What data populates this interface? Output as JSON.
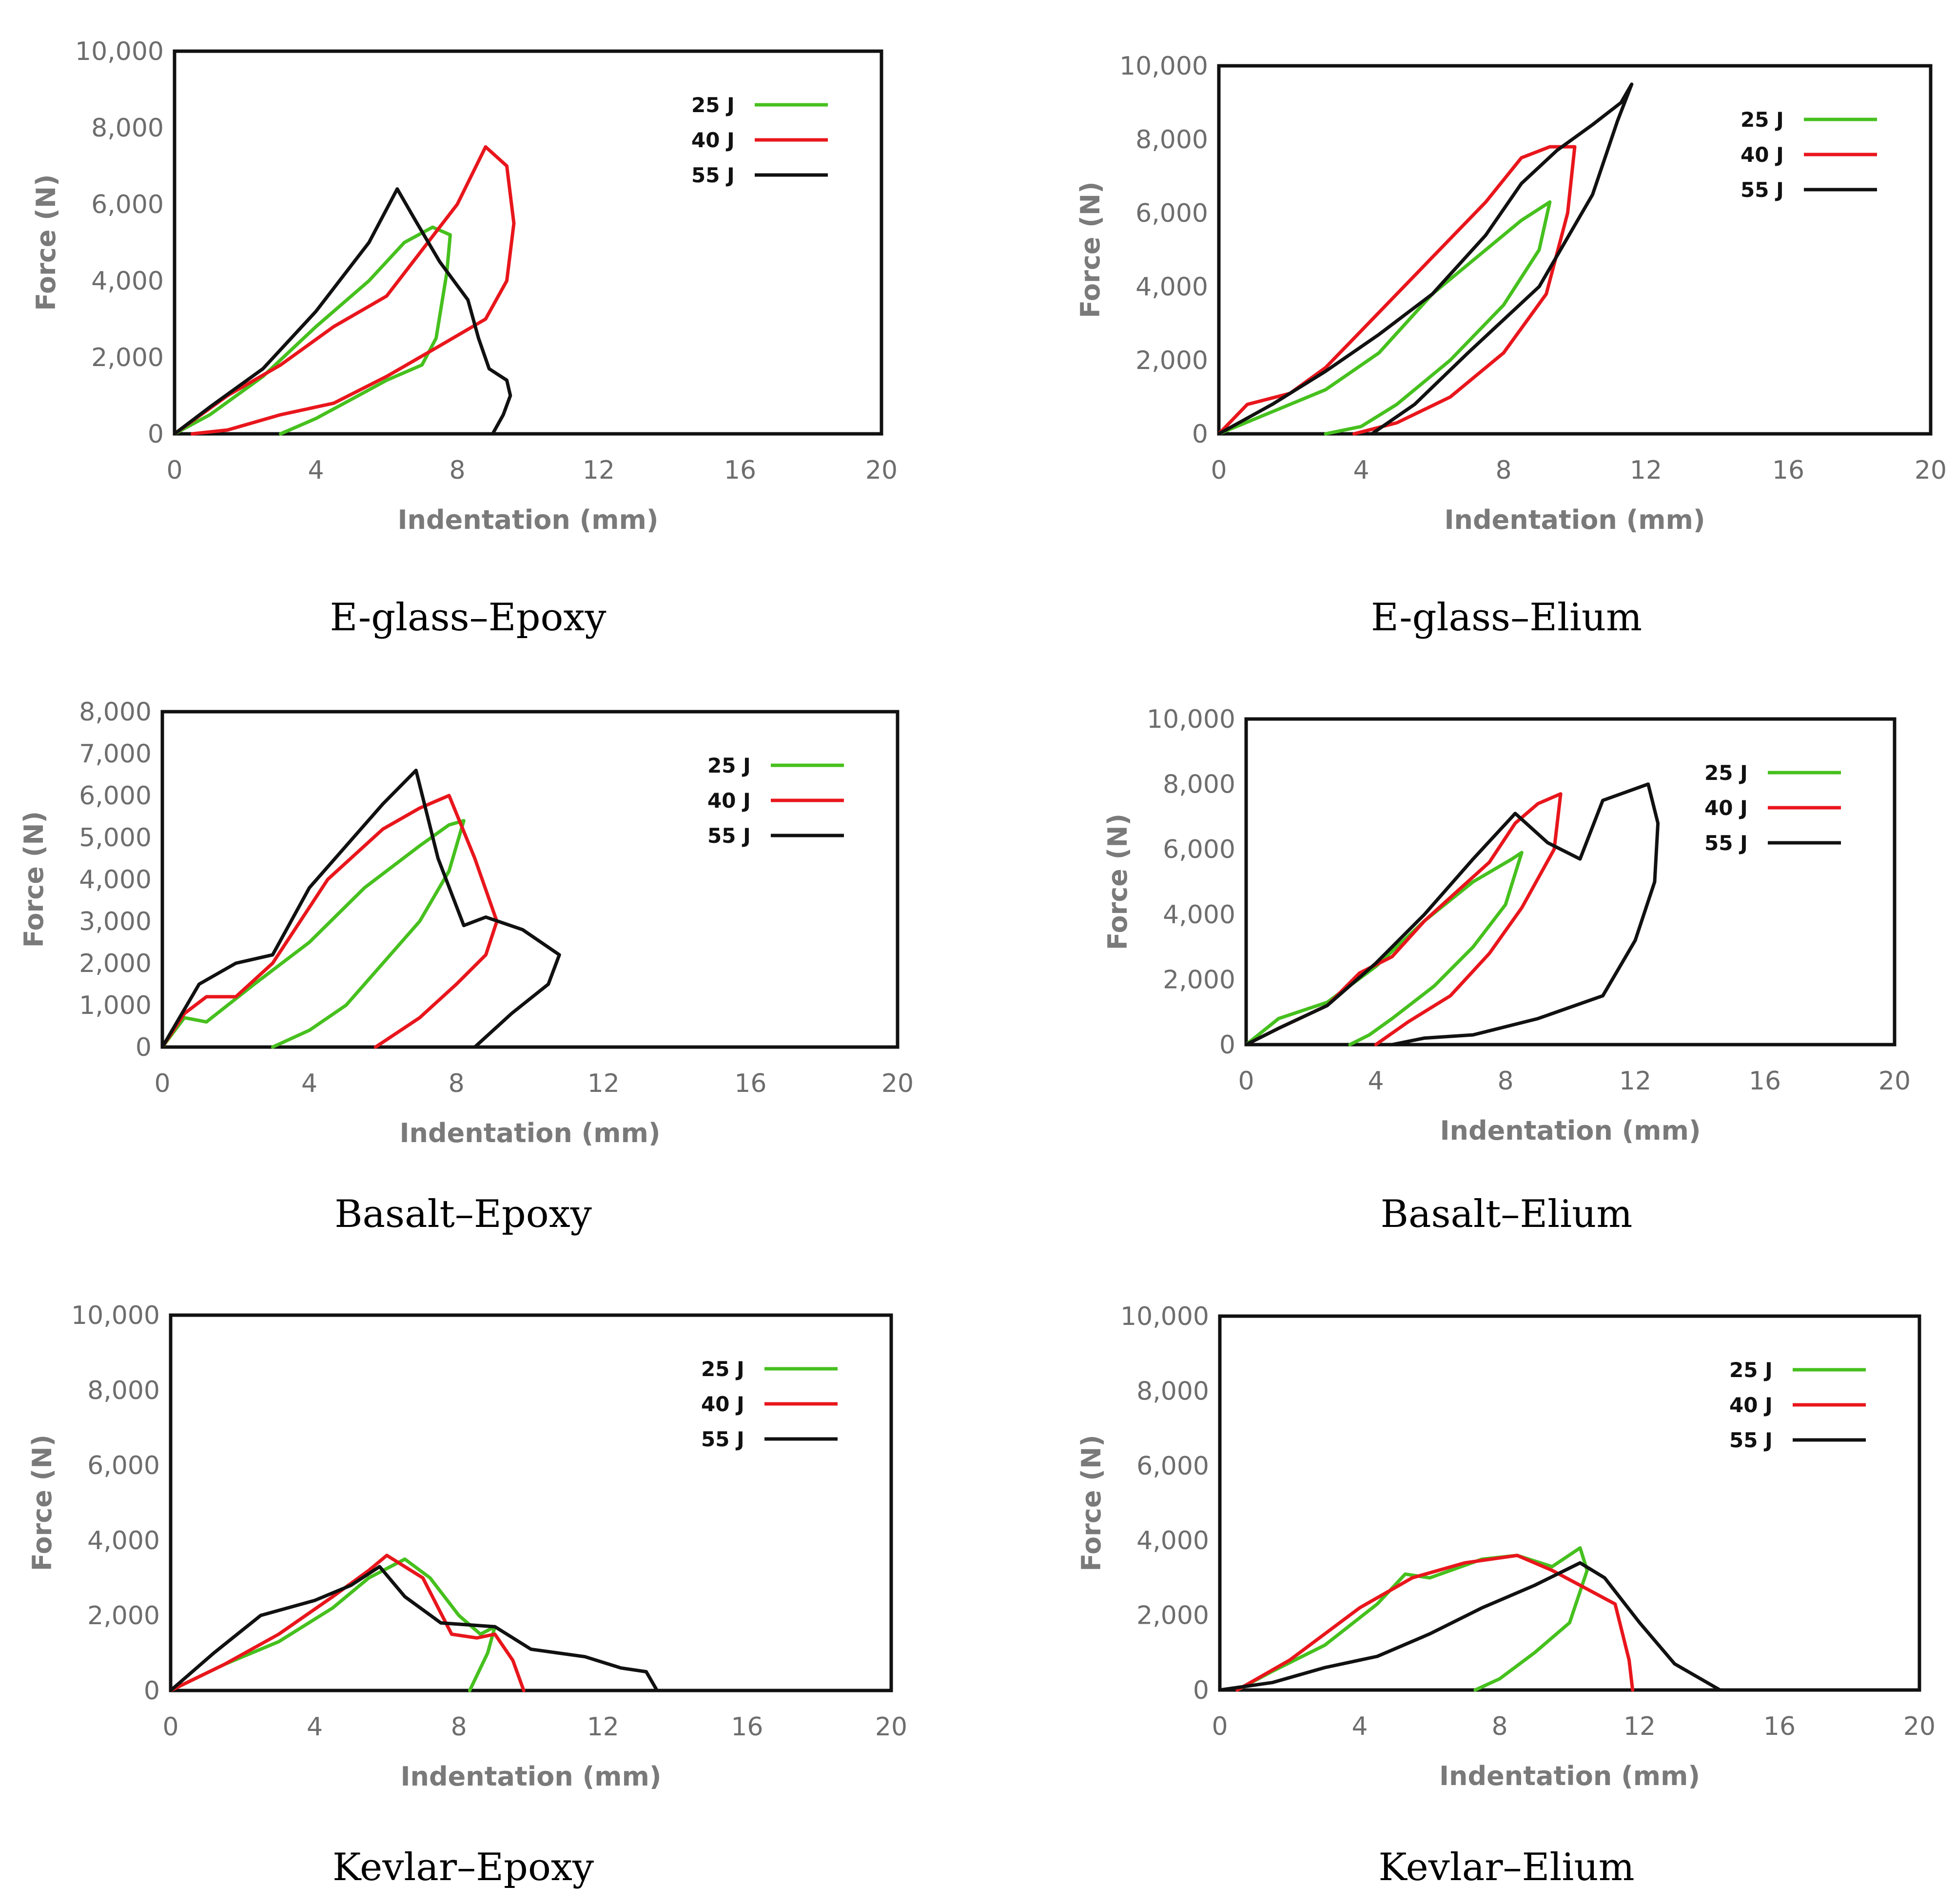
{
  "figure": {
    "captions": [
      "E-glass–Epoxy",
      "E-glass–Elium",
      "Basalt–Epoxy",
      "Basalt–Elium",
      "Kevlar–Epoxy",
      "Kevlar–Elium"
    ]
  },
  "colors": {
    "25 J": "#46c01e",
    "40 J": "#e8161c",
    "55 J": "#111111"
  },
  "chart_data": [
    {
      "type": "line",
      "title": "E-glass–Epoxy",
      "xlabel": "Indentation (mm)",
      "ylabel": "Force (N)",
      "xlim": [
        0,
        20
      ],
      "ylim": [
        0,
        10000
      ],
      "xticks": [
        "0",
        "4",
        "8",
        "12",
        "16",
        "20"
      ],
      "yticks": [
        "0",
        "2,000",
        "4,000",
        "6,000",
        "8,000",
        "10,000"
      ],
      "legend": [
        "25 J",
        "40 J",
        "55 J"
      ],
      "series": [
        {
          "name": "25 J",
          "x": [
            0,
            1.0,
            2.5,
            4.0,
            5.5,
            6.5,
            7.3,
            7.8,
            7.7,
            7.4,
            7.0,
            6.0,
            5.0,
            4.0,
            3.0
          ],
          "y": [
            0,
            500,
            1500,
            2800,
            4000,
            5000,
            5400,
            5200,
            4200,
            2500,
            1800,
            1400,
            900,
            400,
            0
          ]
        },
        {
          "name": "40 J",
          "x": [
            0,
            1.5,
            3.0,
            4.5,
            6.0,
            7.0,
            8.0,
            8.8,
            9.4,
            9.6,
            9.4,
            8.8,
            7.5,
            6.0,
            4.5,
            3.0,
            1.5,
            0.5
          ],
          "y": [
            0,
            1000,
            1800,
            2800,
            3600,
            4800,
            6000,
            7500,
            7000,
            5500,
            4000,
            3000,
            2300,
            1500,
            800,
            500,
            100,
            0
          ]
        },
        {
          "name": "55 J",
          "x": [
            0,
            1.0,
            2.5,
            4.0,
            5.5,
            6.3,
            6.8,
            7.5,
            8.3,
            8.6,
            8.9,
            9.4,
            9.5,
            9.3,
            9.0
          ],
          "y": [
            0,
            700,
            1700,
            3200,
            5000,
            6400,
            5600,
            4500,
            3500,
            2500,
            1700,
            1400,
            1000,
            500,
            0
          ]
        }
      ]
    },
    {
      "type": "line",
      "title": "E-glass–Elium",
      "xlabel": "Indentation (mm)",
      "ylabel": "Force (N)",
      "xlim": [
        0,
        20
      ],
      "ylim": [
        0,
        10000
      ],
      "xticks": [
        "0",
        "4",
        "8",
        "12",
        "16",
        "20"
      ],
      "yticks": [
        "0",
        "2,000",
        "4,000",
        "6,000",
        "8,000",
        "10,000"
      ],
      "legend": [
        "25 J",
        "40 J",
        "55 J"
      ],
      "series": [
        {
          "name": "25 J",
          "x": [
            0,
            1.5,
            3.0,
            4.5,
            6.0,
            7.5,
            8.5,
            9.3,
            9.0,
            8.0,
            6.5,
            5.0,
            4.0,
            3.0
          ],
          "y": [
            0,
            600,
            1200,
            2200,
            3800,
            5000,
            5800,
            6300,
            5000,
            3500,
            2000,
            800,
            200,
            0
          ]
        },
        {
          "name": "40 J",
          "x": [
            0,
            0.8,
            2.0,
            3.0,
            4.5,
            6.0,
            7.5,
            8.5,
            9.3,
            10.0,
            9.8,
            9.2,
            8.0,
            6.5,
            5.0,
            3.8
          ],
          "y": [
            0,
            800,
            1100,
            1800,
            3300,
            4800,
            6300,
            7500,
            7800,
            7800,
            6000,
            3800,
            2200,
            1000,
            300,
            0
          ]
        },
        {
          "name": "55 J",
          "x": [
            0,
            1.5,
            3.0,
            4.5,
            6.0,
            7.5,
            8.5,
            9.5,
            10.5,
            11.3,
            11.6,
            11.2,
            10.5,
            9.0,
            7.0,
            5.5,
            4.3
          ],
          "y": [
            0,
            800,
            1700,
            2700,
            3800,
            5400,
            6800,
            7700,
            8400,
            9000,
            9500,
            8500,
            6500,
            4000,
            2200,
            800,
            0
          ]
        }
      ]
    },
    {
      "type": "line",
      "title": "Basalt–Epoxy",
      "xlabel": "Indentation (mm)",
      "ylabel": "Force (N)",
      "xlim": [
        0,
        20
      ],
      "ylim": [
        0,
        8000
      ],
      "xticks": [
        "0",
        "4",
        "8",
        "12",
        "16",
        "20"
      ],
      "yticks": [
        "0",
        "1,000",
        "2,000",
        "3,000",
        "4,000",
        "5,000",
        "6,000",
        "7,000",
        "8,000"
      ],
      "legend": [
        "25 J",
        "40 J",
        "55 J"
      ],
      "series": [
        {
          "name": "25 J",
          "x": [
            0,
            0.6,
            1.2,
            2.5,
            4.0,
            5.5,
            7.0,
            7.8,
            8.2,
            7.8,
            7.0,
            6.0,
            5.0,
            4.0,
            3.0
          ],
          "y": [
            0,
            700,
            600,
            1500,
            2500,
            3800,
            4800,
            5300,
            5400,
            4200,
            3000,
            2000,
            1000,
            400,
            0
          ]
        },
        {
          "name": "40 J",
          "x": [
            0,
            0.6,
            1.2,
            2.0,
            3.0,
            4.5,
            6.0,
            7.0,
            7.8,
            8.5,
            9.1,
            8.8,
            8.0,
            7.0,
            5.8
          ],
          "y": [
            0,
            800,
            1200,
            1200,
            2000,
            4000,
            5200,
            5700,
            6000,
            4500,
            3000,
            2200,
            1500,
            700,
            0
          ]
        },
        {
          "name": "55 J",
          "x": [
            0,
            1.0,
            2.0,
            3.0,
            4.0,
            5.0,
            6.0,
            6.9,
            7.5,
            8.2,
            8.8,
            9.8,
            10.8,
            10.5,
            9.5,
            8.5
          ],
          "y": [
            0,
            1500,
            2000,
            2200,
            3800,
            4800,
            5800,
            6600,
            4500,
            2900,
            3100,
            2800,
            2200,
            1500,
            800,
            0
          ]
        }
      ]
    },
    {
      "type": "line",
      "title": "Basalt–Elium",
      "xlabel": "Indentation (mm)",
      "ylabel": "Force (N)",
      "xlim": [
        0,
        20
      ],
      "ylim": [
        0,
        10000
      ],
      "xticks": [
        "0",
        "4",
        "8",
        "12",
        "16",
        "20"
      ],
      "yticks": [
        "0",
        "2,000",
        "4,000",
        "6,000",
        "8,000",
        "10,000"
      ],
      "legend": [
        "25 J",
        "40 J",
        "55 J"
      ],
      "series": [
        {
          "name": "25 J",
          "x": [
            0,
            1.0,
            2.5,
            4.0,
            5.5,
            7.0,
            8.2,
            8.5,
            8.0,
            7.0,
            5.8,
            4.5,
            3.8,
            3.2
          ],
          "y": [
            0,
            800,
            1300,
            2400,
            3800,
            5000,
            5700,
            5900,
            4300,
            3000,
            1800,
            800,
            300,
            0
          ]
        },
        {
          "name": "40 J",
          "x": [
            0,
            1.0,
            2.5,
            3.5,
            4.5,
            5.5,
            6.5,
            7.5,
            8.3,
            9.0,
            9.7,
            9.5,
            8.5,
            7.5,
            6.3,
            5.0,
            4.0
          ],
          "y": [
            0,
            500,
            1200,
            2200,
            2700,
            3800,
            4700,
            5600,
            6800,
            7400,
            7700,
            6000,
            4200,
            2800,
            1500,
            700,
            0
          ]
        },
        {
          "name": "55 J",
          "x": [
            0,
            1.0,
            2.5,
            4.0,
            5.5,
            7.0,
            8.3,
            9.3,
            10.3,
            11.0,
            12.4,
            12.7,
            12.6,
            12.0,
            11.0,
            9.0,
            7.0,
            5.5,
            4.5
          ],
          "y": [
            0,
            500,
            1200,
            2500,
            4000,
            5700,
            7100,
            6200,
            5700,
            7500,
            8000,
            6800,
            5000,
            3200,
            1500,
            800,
            300,
            200,
            0
          ]
        }
      ]
    },
    {
      "type": "line",
      "title": "Kevlar–Epoxy",
      "xlabel": "Indentation (mm)",
      "ylabel": "Force (N)",
      "xlim": [
        0,
        20
      ],
      "ylim": [
        0,
        10000
      ],
      "xticks": [
        "0",
        "4",
        "8",
        "12",
        "16",
        "20"
      ],
      "yticks": [
        "0",
        "2,000",
        "4,000",
        "6,000",
        "8,000",
        "10,000"
      ],
      "legend": [
        "25 J",
        "40 J",
        "55 J"
      ],
      "series": [
        {
          "name": "25 J",
          "x": [
            0,
            1.5,
            3.0,
            4.5,
            5.5,
            6.5,
            7.2,
            8.0,
            8.6,
            9.0,
            8.8,
            8.3
          ],
          "y": [
            0,
            700,
            1300,
            2200,
            3000,
            3500,
            3000,
            2000,
            1500,
            1700,
            1000,
            0
          ]
        },
        {
          "name": "40 J",
          "x": [
            0,
            1.5,
            3.0,
            4.5,
            5.5,
            6.0,
            7.0,
            7.8,
            8.5,
            9.0,
            9.5,
            9.8
          ],
          "y": [
            0,
            700,
            1500,
            2500,
            3200,
            3600,
            3000,
            1500,
            1400,
            1500,
            800,
            0
          ]
        },
        {
          "name": "55 J",
          "x": [
            0,
            1.2,
            2.5,
            4.0,
            5.0,
            5.8,
            6.5,
            7.5,
            9.0,
            10.0,
            11.5,
            12.5,
            13.2,
            13.5
          ],
          "y": [
            0,
            1000,
            2000,
            2400,
            2800,
            3300,
            2500,
            1800,
            1700,
            1100,
            900,
            600,
            500,
            0
          ]
        }
      ]
    },
    {
      "type": "line",
      "title": "Kevlar–Elium",
      "xlabel": "Indentation (mm)",
      "ylabel": "Force (N)",
      "xlim": [
        0,
        20
      ],
      "ylim": [
        0,
        10000
      ],
      "xticks": [
        "0",
        "4",
        "8",
        "12",
        "16",
        "20"
      ],
      "yticks": [
        "0",
        "2,000",
        "4,000",
        "6,000",
        "8,000",
        "10,000"
      ],
      "legend": [
        "25 J",
        "40 J",
        "55 J"
      ],
      "series": [
        {
          "name": "25 J",
          "x": [
            0.5,
            1.5,
            3.0,
            4.5,
            5.3,
            6.0,
            7.5,
            8.5,
            9.5,
            10.3,
            10.5,
            10.0,
            9.0,
            8.0,
            7.3
          ],
          "y": [
            0,
            500,
            1200,
            2300,
            3100,
            3000,
            3500,
            3600,
            3300,
            3800,
            3200,
            1800,
            1000,
            300,
            0
          ]
        },
        {
          "name": "40 J",
          "x": [
            0.5,
            2.0,
            4.0,
            5.5,
            7.0,
            8.5,
            9.5,
            10.5,
            11.3,
            11.7,
            11.8
          ],
          "y": [
            0,
            800,
            2200,
            3000,
            3400,
            3600,
            3200,
            2700,
            2300,
            800,
            0
          ]
        },
        {
          "name": "55 J",
          "x": [
            0,
            1.5,
            3.0,
            4.5,
            6.0,
            7.5,
            9.0,
            10.3,
            11.0,
            12.0,
            13.0,
            14.3
          ],
          "y": [
            0,
            200,
            600,
            900,
            1500,
            2200,
            2800,
            3400,
            3000,
            1800,
            700,
            0
          ]
        }
      ]
    }
  ]
}
